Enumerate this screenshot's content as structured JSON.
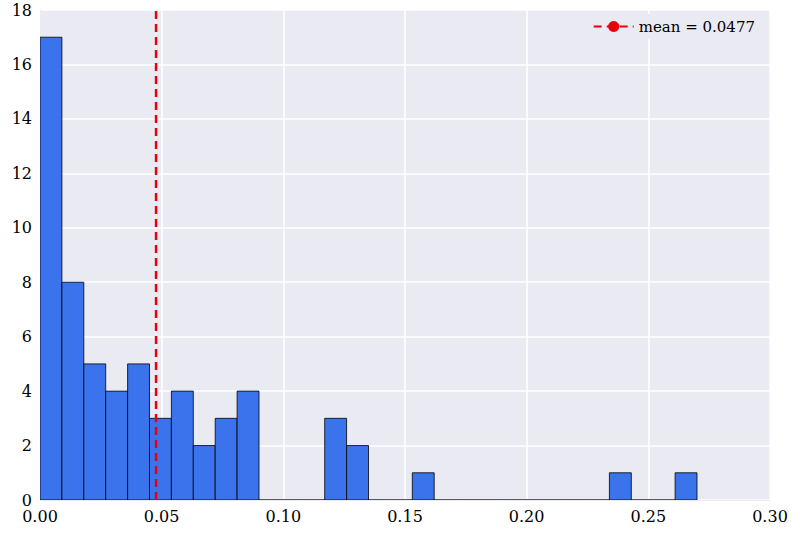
{
  "chart_data": {
    "type": "histogram",
    "bins": [
      0,
      0.009,
      0.018,
      0.027,
      0.036,
      0.045,
      0.054,
      0.063,
      0.072,
      0.081,
      0.09,
      0.099,
      0.108,
      0.117,
      0.126,
      0.135,
      0.144,
      0.153,
      0.162,
      0.171,
      0.18,
      0.189,
      0.198,
      0.207,
      0.216,
      0.225,
      0.234,
      0.243,
      0.252,
      0.261,
      0.27
    ],
    "values": [
      17,
      8,
      5,
      4,
      5,
      3,
      4,
      2,
      3,
      4,
      0,
      0,
      0,
      3,
      2,
      0,
      0,
      1,
      0,
      0,
      0,
      0,
      0,
      0,
      0,
      0,
      1,
      0,
      0,
      1
    ],
    "color": "#3b73ec",
    "mean_line": {
      "value": 0.0477,
      "label": "mean = 0.0477",
      "color": "#e8000b",
      "line_style": "dashed"
    },
    "legend": "upper right",
    "xlim": [
      0,
      0.3
    ],
    "xticks": [
      {
        "value": 0,
        "label": "0.00"
      },
      {
        "value": 0.05,
        "label": "0.05"
      },
      {
        "value": 0.1,
        "label": "0.10"
      },
      {
        "value": 0.15,
        "label": "0.15"
      },
      {
        "value": 0.2,
        "label": "0.20"
      },
      {
        "value": 0.25,
        "label": "0.25"
      },
      {
        "value": 0.3,
        "label": "0.30"
      }
    ],
    "ylim": [
      0,
      18
    ],
    "yticks": [
      0,
      2,
      4,
      6,
      8,
      10,
      12,
      14,
      16,
      18
    ],
    "grid": true
  }
}
